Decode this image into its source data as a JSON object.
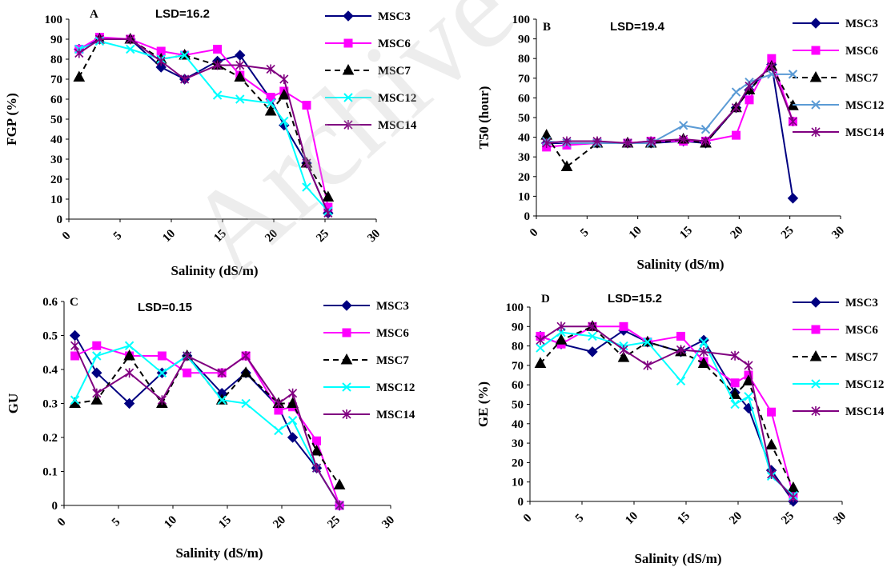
{
  "colors": {
    "MSC3": "#000080",
    "MSC6": "#ff00ff",
    "MSC7": "#000000",
    "MSC12": "#00ffff",
    "MSC12_B": "#5b9bd5",
    "MSC14": "#800080"
  },
  "x_ticks": [
    "0",
    "5",
    "10",
    "15",
    "20",
    "25",
    "30"
  ],
  "chart_data": [
    {
      "type": "line",
      "panel": "A",
      "annotation": "LSD=16.2",
      "xlabel": "Salinity (dS/m)",
      "ylabel": "FGP (%)",
      "xlim": [
        0,
        30
      ],
      "ylim": [
        0,
        100
      ],
      "yticks": [
        "0",
        "10",
        "20",
        "30",
        "40",
        "50",
        "60",
        "70",
        "80",
        "90",
        "100"
      ],
      "x": [
        1,
        3,
        6,
        9,
        11.3,
        14.5,
        16.7,
        19.7,
        21,
        23.2,
        25.3
      ],
      "series": [
        {
          "name": "MSC3",
          "marker": "diamond",
          "values": [
            85,
            90,
            90,
            76,
            70,
            79,
            82,
            60,
            47,
            28,
            3
          ]
        },
        {
          "name": "MSC6",
          "marker": "square",
          "values": [
            85,
            91,
            90,
            84,
            82,
            85,
            72,
            61,
            64,
            57,
            6
          ]
        },
        {
          "name": "MSC7",
          "marker": "triangle",
          "dash": true,
          "values": [
            71,
            90,
            90,
            80,
            82,
            77,
            71,
            54,
            62,
            28,
            11
          ]
        },
        {
          "name": "MSC12",
          "marker": "x",
          "values": [
            85,
            89,
            85,
            80,
            82,
            62,
            60,
            58,
            49,
            16,
            4
          ]
        },
        {
          "name": "MSC14",
          "marker": "star",
          "values": [
            83,
            90,
            90,
            79,
            70,
            77,
            77,
            75,
            70,
            28,
            3
          ]
        }
      ]
    },
    {
      "type": "line",
      "panel": "B",
      "annotation": "LSD=19.4",
      "xlabel": "Salinity (dS/m)",
      "ylabel": "T50 (hour)",
      "xlim": [
        0,
        30
      ],
      "ylim": [
        0,
        100
      ],
      "yticks": [
        "0",
        "10",
        "20",
        "30",
        "40",
        "50",
        "60",
        "70",
        "80",
        "90",
        "100"
      ],
      "x": [
        1,
        3,
        6,
        9,
        11.3,
        14.5,
        16.7,
        19.7,
        21,
        23.2,
        25.3
      ],
      "series": [
        {
          "name": "MSC3",
          "marker": "diamond",
          "values": [
            37,
            37,
            37,
            37,
            37,
            38,
            37,
            55,
            64,
            77,
            9
          ]
        },
        {
          "name": "MSC6",
          "marker": "square",
          "values": [
            35,
            36,
            37,
            37,
            38,
            38,
            38,
            41,
            59,
            80,
            48
          ]
        },
        {
          "name": "MSC7",
          "marker": "triangle",
          "dash": true,
          "values": [
            41,
            25,
            37,
            37,
            37,
            39,
            37,
            55,
            64,
            76,
            56
          ]
        },
        {
          "name": "MSC12",
          "marker": "x",
          "color_key": "MSC12_B",
          "values": [
            38,
            37,
            37,
            37,
            37,
            46,
            44,
            63,
            68,
            72,
            72
          ]
        },
        {
          "name": "MSC14",
          "marker": "star",
          "values": [
            37,
            38,
            38,
            37,
            38,
            39,
            38,
            55,
            66,
            76,
            48
          ]
        }
      ]
    },
    {
      "type": "line",
      "panel": "C",
      "annotation": "LSD=0.15",
      "xlabel": "Salinity (dS/m)",
      "ylabel": "GU",
      "xlim": [
        0,
        30
      ],
      "ylim": [
        0,
        0.6
      ],
      "yticks": [
        "0",
        "0.1",
        "0.2",
        "0.3",
        "0.4",
        "0.5",
        "0.6"
      ],
      "x": [
        1,
        3,
        6,
        9,
        11.3,
        14.5,
        16.7,
        19.7,
        21,
        23.2,
        25.3
      ],
      "series": [
        {
          "name": "MSC3",
          "marker": "diamond",
          "values": [
            0.5,
            0.39,
            0.3,
            0.39,
            0.44,
            0.33,
            0.39,
            0.29,
            0.2,
            0.11,
            0
          ]
        },
        {
          "name": "MSC6",
          "marker": "square",
          "values": [
            0.44,
            0.47,
            0.44,
            0.44,
            0.39,
            0.39,
            0.44,
            0.28,
            0.29,
            0.19,
            0
          ]
        },
        {
          "name": "MSC7",
          "marker": "triangle",
          "dash": true,
          "values": [
            0.3,
            0.31,
            0.44,
            0.3,
            0.44,
            0.31,
            0.39,
            0.3,
            0.3,
            0.16,
            0.06
          ]
        },
        {
          "name": "MSC12",
          "marker": "x",
          "values": [
            0.31,
            0.44,
            0.47,
            0.39,
            0.44,
            0.31,
            0.3,
            0.22,
            0.25,
            0.11,
            0
          ]
        },
        {
          "name": "MSC14",
          "marker": "star",
          "values": [
            0.47,
            0.33,
            0.39,
            0.31,
            0.44,
            0.39,
            0.44,
            0.3,
            0.33,
            0.11,
            0
          ]
        }
      ]
    },
    {
      "type": "line",
      "panel": "D",
      "annotation": "LSD=15.2",
      "xlabel": "Salinity (dS/m)",
      "ylabel": "GE (%)",
      "xlim": [
        0,
        30
      ],
      "ylim": [
        0,
        100
      ],
      "yticks": [
        "0",
        "10",
        "20",
        "30",
        "40",
        "50",
        "60",
        "70",
        "80",
        "90",
        "100"
      ],
      "x": [
        1,
        3,
        6,
        9,
        11.3,
        14.5,
        16.7,
        19.7,
        21,
        23.2,
        25.3
      ],
      "series": [
        {
          "name": "MSC3",
          "marker": "diamond",
          "values": [
            85,
            81,
            77,
            88,
            82,
            77,
            83,
            56,
            48,
            16,
            0
          ]
        },
        {
          "name": "MSC6",
          "marker": "square",
          "values": [
            85,
            81,
            90,
            90,
            82,
            85,
            72,
            61,
            65,
            46,
            3
          ]
        },
        {
          "name": "MSC7",
          "marker": "triangle",
          "dash": true,
          "values": [
            71,
            83,
            90,
            74,
            82,
            77,
            71,
            55,
            62,
            29,
            7
          ]
        },
        {
          "name": "MSC12",
          "marker": "x",
          "values": [
            79,
            87,
            85,
            80,
            82,
            62,
            82,
            50,
            54,
            13,
            3
          ]
        },
        {
          "name": "MSC14",
          "marker": "star",
          "values": [
            83,
            90,
            90,
            78,
            70,
            78,
            77,
            75,
            70,
            14,
            2
          ]
        }
      ]
    }
  ],
  "watermark": "Archive"
}
